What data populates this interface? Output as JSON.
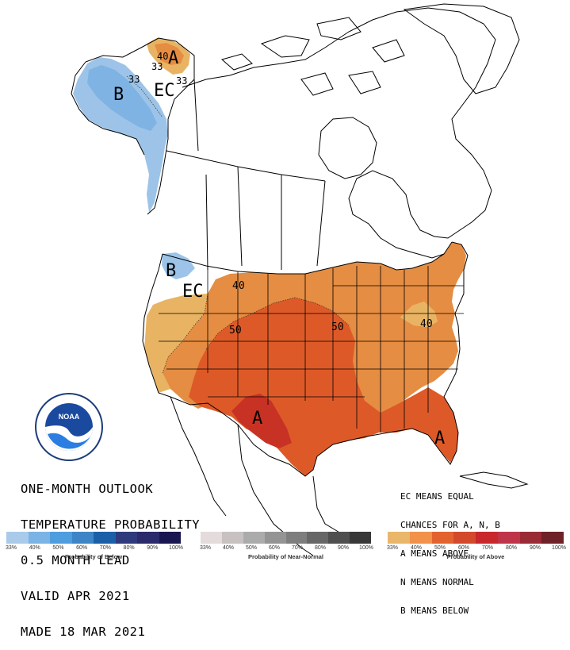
{
  "title_lines": [
    "ONE-MONTH OUTLOOK",
    "TEMPERATURE PROBABILITY",
    "0.5 MONTH LEAD",
    "VALID APR 2021",
    "MADE 18 MAR 2021"
  ],
  "legend_lines": [
    "EC MEANS EQUAL",
    "CHANCES FOR A, N, B",
    "A MEANS ABOVE",
    "N MEANS NORMAL",
    "B MEANS BELOW"
  ],
  "map_labels": {
    "alaska_a": "A",
    "alaska_40": "40",
    "alaska_33a": "33",
    "alaska_33b": "33",
    "alaska_33c": "33",
    "alaska_b": "B",
    "alaska_ec": "EC",
    "nw_b": "B",
    "west_ec": "EC",
    "c40": "40",
    "c50a": "50",
    "c50b": "50",
    "ne40": "40",
    "sw_a": "A",
    "fl_a": "A"
  },
  "logo_text": "NOAA",
  "colors": {
    "below_33": "#9dc4e8",
    "below_40": "#7fb3e3",
    "above_33": "#e8b464",
    "above_40": "#e58d42",
    "above_50": "#dd5a28",
    "above_60": "#c83224"
  },
  "color_bars": [
    {
      "name": "below",
      "title": "Probability of Below",
      "colors": [
        "#a9cbe9",
        "#7bb3e4",
        "#4d9ddf",
        "#3d85c6",
        "#1b5fa8",
        "#2e3a7c",
        "#2b2a6a",
        "#1a1650"
      ],
      "ticks": [
        "33%",
        "40%",
        "50%",
        "60%",
        "70%",
        "80%",
        "90%",
        "100%"
      ]
    },
    {
      "name": "near-normal",
      "title": "Probability of Near-Normal",
      "colors": [
        "#e4dcdc",
        "#c7c1c1",
        "#ababab",
        "#949494",
        "#7e7e7e",
        "#676767",
        "#4f4f4f",
        "#383838"
      ],
      "ticks": [
        "33%",
        "40%",
        "50%",
        "60%",
        "70%",
        "80%",
        "90%",
        "100%"
      ]
    },
    {
      "name": "above",
      "title": "Probability of Above",
      "colors": [
        "#e9b66a",
        "#f1914a",
        "#e3632f",
        "#d24a2b",
        "#c8272c",
        "#c0344a",
        "#9a2a35",
        "#6e2127"
      ],
      "ticks": [
        "33%",
        "40%",
        "50%",
        "60%",
        "70%",
        "80%",
        "90%",
        "100%"
      ]
    }
  ]
}
